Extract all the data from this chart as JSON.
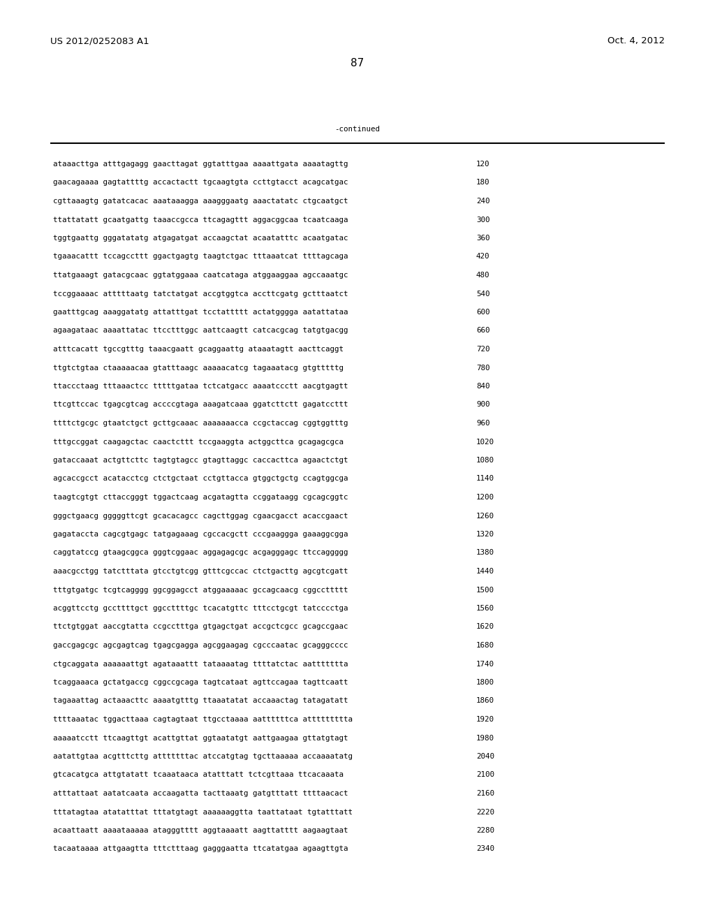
{
  "header_left": "US 2012/0252083 A1",
  "header_right": "Oct. 4, 2012",
  "page_number": "87",
  "continued_label": "-continued",
  "background_color": "#ffffff",
  "text_color": "#000000",
  "font_size_header": 9.5,
  "font_size_body": 7.8,
  "font_size_page": 11,
  "sequence_lines": [
    [
      "ataaacttga atttgagagg gaacttagat ggtatttgaa aaaattgata aaaatagttg",
      "120"
    ],
    [
      "gaacagaaaa gagtattttg accactactt tgcaagtgta ccttgtacct acagcatgac",
      "180"
    ],
    [
      "cgttaaagtg gatatcacac aaataaagga aaagggaatg aaactatatc ctgcaatgct",
      "240"
    ],
    [
      "ttattatatt gcaatgattg taaaccgcca ttcagagttt aggacggcaa tcaatcaaga",
      "300"
    ],
    [
      "tggtgaattg gggatatatg atgagatgat accaagctat acaatatttc acaatgatac",
      "360"
    ],
    [
      "tgaaacattt tccagccttt ggactgagtg taagtctgac tttaaatcat ttttagcaga",
      "420"
    ],
    [
      "ttatgaaagt gatacgcaac ggtatggaaa caatcataga atggaaggaa agccaaatgc",
      "480"
    ],
    [
      "tccggaaaac atttttaatg tatctatgat accgtggtca accttcgatg gctttaatct",
      "540"
    ],
    [
      "gaatttgcag aaaggatatg attatttgat tcctattttt actatgggga aatattataa",
      "600"
    ],
    [
      "agaagataac aaaattatac ttcctttggc aattcaagtt catcacgcag tatgtgacgg",
      "660"
    ],
    [
      "atttcacatt tgccgtttg taaacgaatt gcaggaattg ataaatagtt aacttcaggt",
      "720"
    ],
    [
      "ttgtctgtaa ctaaaaacaa gtatttaagc aaaaacatcg tagaaatacg gtgtttttg",
      "780"
    ],
    [
      "ttaccctaag tttaaactcc tttttgataa tctcatgacc aaaatccctt aacgtgagtt",
      "840"
    ],
    [
      "ttcgttccac tgagcgtcag accccgtaga aaagatcaaa ggatcttctt gagatccttt",
      "900"
    ],
    [
      "ttttctgcgc gtaatctgct gcttgcaaac aaaaaaacca ccgctaccag cggtggtttg",
      "960"
    ],
    [
      "tttgccggat caagagctac caactcttt tccgaaggta actggcttca gcagagcgca",
      "1020"
    ],
    [
      "gataccaaat actgttcttc tagtgtagcc gtagttaggc caccacttca agaactctgt",
      "1080"
    ],
    [
      "agcaccgcct acatacctcg ctctgctaat cctgttacca gtggctgctg ccagtggcga",
      "1140"
    ],
    [
      "taagtcgtgt cttaccgggt tggactcaag acgatagtta ccggataagg cgcagcggtc",
      "1200"
    ],
    [
      "gggctgaacg gggggttcgt gcacacagcc cagcttggag cgaacgacct acaccgaact",
      "1260"
    ],
    [
      "gagataccta cagcgtgagc tatgagaaag cgccacgctt cccgaaggga gaaaggcgga",
      "1320"
    ],
    [
      "caggtatccg gtaagcggca gggtcggaac aggagagcgc acgagggagc ttccaggggg",
      "1380"
    ],
    [
      "aaacgcctgg tatctttata gtcctgtcgg gtttcgccac ctctgacttg agcgtcgatt",
      "1440"
    ],
    [
      "tttgtgatgc tcgtcagggg ggcggagcct atggaaaaac gccagcaacg cggccttttt",
      "1500"
    ],
    [
      "acggttcctg gccttttgct ggccttttgc tcacatgttc tttcctgcgt tatcccctga",
      "1560"
    ],
    [
      "ttctgtggat aaccgtatta ccgcctttga gtgagctgat accgctcgcc gcagccgaac",
      "1620"
    ],
    [
      "gaccgagcgc agcgagtcag tgagcgagga agcggaagag cgcccaatac gcagggcccc",
      "1680"
    ],
    [
      "ctgcaggata aaaaaattgt agataaattt tataaaatag ttttatctac aattttttta",
      "1740"
    ],
    [
      "tcaggaaaca gctatgaccg cggccgcaga tagtcataat agttccagaa tagttcaatt",
      "1800"
    ],
    [
      "tagaaattag actaaacttc aaaatgtttg ttaaatatat accaaactag tatagatatt",
      "1860"
    ],
    [
      "ttttaaatac tggacttaaa cagtagtaat ttgcctaaaa aattttttca attttttttta",
      "1920"
    ],
    [
      "aaaaatcctt ttcaagttgt acattgttat ggtaatatgt aattgaagaa gttatgtagt",
      "1980"
    ],
    [
      "aatattgtaa acgtttcttg atttttttac atccatgtag tgcttaaaaa accaaaatatg",
      "2040"
    ],
    [
      "gtcacatgca attgtatatt tcaaataaca atatttatt tctcgttaaa ttcacaaata",
      "2100"
    ],
    [
      "atttattaat aatatcaata accaagatta tacttaaatg gatgtttatt ttttaacact",
      "2160"
    ],
    [
      "tttatagtaa atatatttat tttatgtagt aaaaaaggtta taattataat tgtatttatt",
      "2220"
    ],
    [
      "acaattaatt aaaataaaaa atagggtttt aggtaaaatt aagttatttt aagaagtaat",
      "2280"
    ],
    [
      "tacaataaaa attgaagtta tttctttaag gagggaatta ttcatatgaa agaagttgta",
      "2340"
    ]
  ]
}
